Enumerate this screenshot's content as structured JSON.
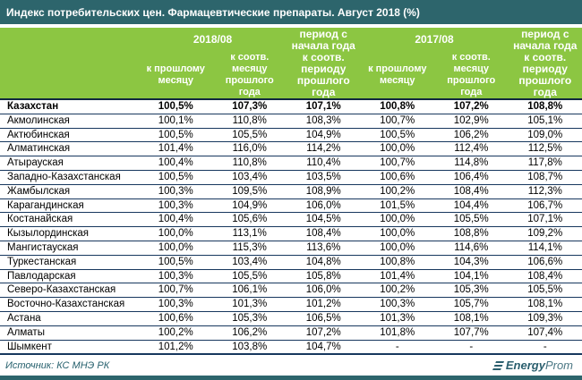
{
  "title": "Индекс потребительских цен. Фармацевтические препараты. Август 2018 (%)",
  "header": {
    "group_2018": "2018/08",
    "group_2017": "2017/08",
    "period_2018": "период с начала года к соотв. периоду прошлого года",
    "period_2017": "период с начала года к соотв. периоду прошлого года",
    "prev_month_2018": "к прошлому месяцу",
    "same_month_2018": "к соотв. месяцу прошлого года",
    "prev_month_2017": "к прошлому месяцу",
    "same_month_2017": "к соотв. месяцу прошлого года"
  },
  "rows": [
    {
      "region": "Казахстан",
      "bold": true,
      "values": [
        "100,5%",
        "107,3%",
        "107,1%",
        "100,8%",
        "107,2%",
        "108,8%"
      ]
    },
    {
      "region": "Акмолинская",
      "bold": false,
      "values": [
        "100,1%",
        "110,8%",
        "108,3%",
        "100,7%",
        "102,9%",
        "105,1%"
      ]
    },
    {
      "region": "Актюбинская",
      "bold": false,
      "values": [
        "100,5%",
        "105,5%",
        "104,9%",
        "100,5%",
        "106,2%",
        "109,0%"
      ]
    },
    {
      "region": "Алматинская",
      "bold": false,
      "values": [
        "101,4%",
        "116,0%",
        "114,2%",
        "100,0%",
        "112,4%",
        "112,5%"
      ]
    },
    {
      "region": "Атырауская",
      "bold": false,
      "values": [
        "100,4%",
        "110,8%",
        "110,4%",
        "100,7%",
        "114,8%",
        "117,8%"
      ]
    },
    {
      "region": "Западно-Казахстанская",
      "bold": false,
      "values": [
        "100,5%",
        "103,4%",
        "103,5%",
        "100,6%",
        "106,4%",
        "108,7%"
      ]
    },
    {
      "region": "Жамбылская",
      "bold": false,
      "values": [
        "100,3%",
        "109,5%",
        "108,9%",
        "100,2%",
        "108,4%",
        "112,3%"
      ]
    },
    {
      "region": "Карагандинская",
      "bold": false,
      "values": [
        "100,3%",
        "104,9%",
        "106,0%",
        "101,5%",
        "104,4%",
        "106,7%"
      ]
    },
    {
      "region": "Костанайская",
      "bold": false,
      "values": [
        "100,4%",
        "105,6%",
        "104,5%",
        "100,0%",
        "105,5%",
        "107,1%"
      ]
    },
    {
      "region": "Кызылординская",
      "bold": false,
      "values": [
        "100,0%",
        "113,1%",
        "108,4%",
        "100,0%",
        "108,8%",
        "109,2%"
      ]
    },
    {
      "region": "Мангистауская",
      "bold": false,
      "values": [
        "100,0%",
        "115,3%",
        "113,6%",
        "100,0%",
        "114,6%",
        "114,1%"
      ]
    },
    {
      "region": "Туркестанская",
      "bold": false,
      "values": [
        "100,5%",
        "103,4%",
        "104,8%",
        "100,8%",
        "104,3%",
        "106,6%"
      ]
    },
    {
      "region": "Павлодарская",
      "bold": false,
      "values": [
        "100,3%",
        "105,5%",
        "105,8%",
        "101,4%",
        "104,1%",
        "108,4%"
      ]
    },
    {
      "region": "Северо-Казахстанская",
      "bold": false,
      "values": [
        "100,7%",
        "106,1%",
        "106,0%",
        "100,2%",
        "105,3%",
        "105,5%"
      ]
    },
    {
      "region": "Восточно-Казахстанская",
      "bold": false,
      "values": [
        "100,3%",
        "101,3%",
        "101,2%",
        "100,3%",
        "105,7%",
        "108,1%"
      ]
    },
    {
      "region": "Астана",
      "bold": false,
      "values": [
        "100,6%",
        "105,3%",
        "106,5%",
        "101,3%",
        "108,1%",
        "109,3%"
      ]
    },
    {
      "region": "Алматы",
      "bold": false,
      "values": [
        "100,2%",
        "106,2%",
        "107,2%",
        "101,8%",
        "107,7%",
        "107,4%"
      ]
    },
    {
      "region": "Шымкент",
      "bold": false,
      "values": [
        "101,2%",
        "103,8%",
        "104,7%",
        "-",
        "-",
        "-"
      ]
    }
  ],
  "footer": {
    "source": "Источник: КС МНЭ РК",
    "logo_bold": "Energy",
    "logo_light": "Prom"
  },
  "colors": {
    "title_bar": "#2d656c",
    "header_green": "#8cc642",
    "row_border": "#17375e",
    "footer_text": "#26606d"
  }
}
